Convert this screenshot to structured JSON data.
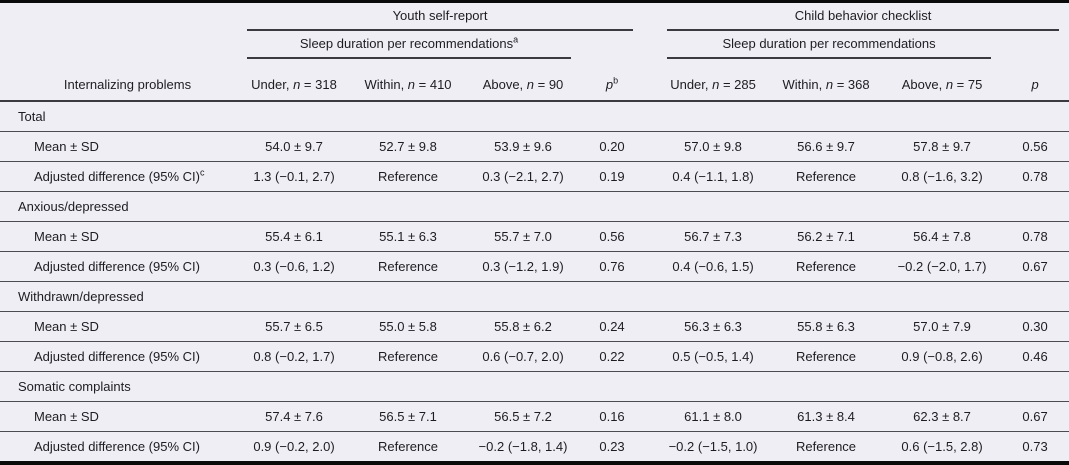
{
  "table": {
    "row_label_header": "Internalizing problems",
    "colors": {
      "background": "#f0eef5",
      "rule": "#4b4b52",
      "heavy_border": "#0a0a0a",
      "text": "#1d1d20"
    },
    "groups": [
      {
        "title": "Youth self-report",
        "subtitle": "Sleep duration per recommendations",
        "subtitle_sup": "a",
        "p_label": "p",
        "p_sup": "b",
        "columns": [
          {
            "pre": "Under, ",
            "var": "n",
            "rest": " = 318"
          },
          {
            "pre": "Within, ",
            "var": "n",
            "rest": " = 410"
          },
          {
            "pre": "Above, ",
            "var": "n",
            "rest": " = 90"
          }
        ]
      },
      {
        "title": "Child behavior checklist",
        "subtitle": "Sleep duration per recommendations",
        "subtitle_sup": "",
        "p_label": "p",
        "p_sup": "",
        "columns": [
          {
            "pre": "Under, ",
            "var": "n",
            "rest": " = 285"
          },
          {
            "pre": "Within, ",
            "var": "n",
            "rest": " = 368"
          },
          {
            "pre": "Above, ",
            "var": "n",
            "rest": " = 75"
          }
        ]
      }
    ],
    "sections": [
      {
        "name": "Total",
        "rows": [
          {
            "label": "Mean ± SD",
            "label_sup": "",
            "y": [
              "54.0 ± 9.7",
              "52.7 ± 9.8",
              "53.9 ± 9.6",
              "0.20"
            ],
            "c": [
              "57.0 ± 9.8",
              "56.6 ± 9.7",
              "57.8 ± 9.7",
              "0.56"
            ]
          },
          {
            "label": "Adjusted difference (95% CI)",
            "label_sup": "c",
            "y": [
              "1.3 (−0.1, 2.7)",
              "Reference",
              "0.3 (−2.1, 2.7)",
              "0.19"
            ],
            "c": [
              "0.4 (−1.1, 1.8)",
              "Reference",
              "0.8 (−1.6, 3.2)",
              "0.78"
            ]
          }
        ]
      },
      {
        "name": "Anxious/depressed",
        "rows": [
          {
            "label": "Mean ± SD",
            "label_sup": "",
            "y": [
              "55.4 ± 6.1",
              "55.1 ± 6.3",
              "55.7 ± 7.0",
              "0.56"
            ],
            "c": [
              "56.7 ± 7.3",
              "56.2 ± 7.1",
              "56.4 ± 7.8",
              "0.78"
            ]
          },
          {
            "label": "Adjusted difference (95% CI)",
            "label_sup": "",
            "y": [
              "0.3 (−0.6, 1.2)",
              "Reference",
              "0.3 (−1.2, 1.9)",
              "0.76"
            ],
            "c": [
              "0.4 (−0.6, 1.5)",
              "Reference",
              "−0.2 (−2.0, 1.7)",
              "0.67"
            ]
          }
        ]
      },
      {
        "name": "Withdrawn/depressed",
        "rows": [
          {
            "label": "Mean ± SD",
            "label_sup": "",
            "y": [
              "55.7 ± 6.5",
              "55.0 ± 5.8",
              "55.8 ± 6.2",
              "0.24"
            ],
            "c": [
              "56.3 ± 6.3",
              "55.8 ± 6.3",
              "57.0 ± 7.9",
              "0.30"
            ]
          },
          {
            "label": "Adjusted difference (95% CI)",
            "label_sup": "",
            "y": [
              "0.8 (−0.2, 1.7)",
              "Reference",
              "0.6 (−0.7, 2.0)",
              "0.22"
            ],
            "c": [
              "0.5 (−0.5, 1.4)",
              "Reference",
              "0.9 (−0.8, 2.6)",
              "0.46"
            ]
          }
        ]
      },
      {
        "name": "Somatic complaints",
        "rows": [
          {
            "label": "Mean ± SD",
            "label_sup": "",
            "y": [
              "57.4 ± 7.6",
              "56.5 ± 7.1",
              "56.5 ± 7.2",
              "0.16"
            ],
            "c": [
              "61.1 ± 8.0",
              "61.3 ± 8.4",
              "62.3 ± 8.7",
              "0.67"
            ]
          },
          {
            "label": "Adjusted difference (95% CI)",
            "label_sup": "",
            "y": [
              "0.9 (−0.2, 2.0)",
              "Reference",
              "−0.2 (−1.8, 1.4)",
              "0.23"
            ],
            "c": [
              "−0.2 (−1.5, 1.0)",
              "Reference",
              "0.6 (−1.5, 2.8)",
              "0.73"
            ]
          }
        ]
      }
    ]
  }
}
